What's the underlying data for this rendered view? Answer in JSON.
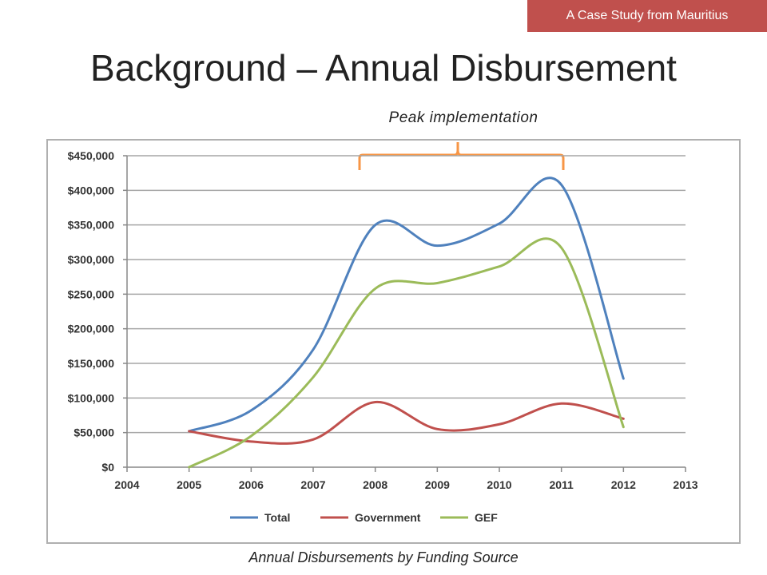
{
  "badge": "A Case Study from Mauritius",
  "title": "Background – Annual Disbursement",
  "annotation": "Peak implementation",
  "caption": "Annual Disbursements by Funding Source",
  "chart_data": {
    "type": "line",
    "title": "",
    "xlabel": "",
    "ylabel": "",
    "xlim": [
      2004,
      2013
    ],
    "ylim": [
      0,
      450000
    ],
    "x_ticks": [
      "2004",
      "2005",
      "2006",
      "2007",
      "2008",
      "2009",
      "2010",
      "2011",
      "2012",
      "2013"
    ],
    "y_ticks": [
      "$0",
      "$50,000",
      "$100,000",
      "$150,000",
      "$200,000",
      "$250,000",
      "$300,000",
      "$350,000",
      "$400,000",
      "$450,000"
    ],
    "grid": true,
    "smooth": true,
    "legend_position": "bottom",
    "series": [
      {
        "name": "Total",
        "color": "#4f81bd",
        "x": [
          2005,
          2006,
          2007,
          2008,
          2009,
          2010,
          2011,
          2012
        ],
        "values": [
          52000,
          82000,
          170000,
          350000,
          320000,
          352000,
          408000,
          128000
        ]
      },
      {
        "name": "Government",
        "color": "#c0504d",
        "x": [
          2005,
          2006,
          2007,
          2008,
          2009,
          2010,
          2011,
          2012
        ],
        "values": [
          52000,
          37000,
          40000,
          94000,
          55000,
          62000,
          92000,
          70000
        ]
      },
      {
        "name": "GEF",
        "color": "#9bbb59",
        "x": [
          2005,
          2006,
          2007,
          2008,
          2009,
          2010,
          2011,
          2012
        ],
        "values": [
          0,
          45000,
          130000,
          258000,
          266000,
          290000,
          317000,
          58000
        ]
      }
    ]
  }
}
